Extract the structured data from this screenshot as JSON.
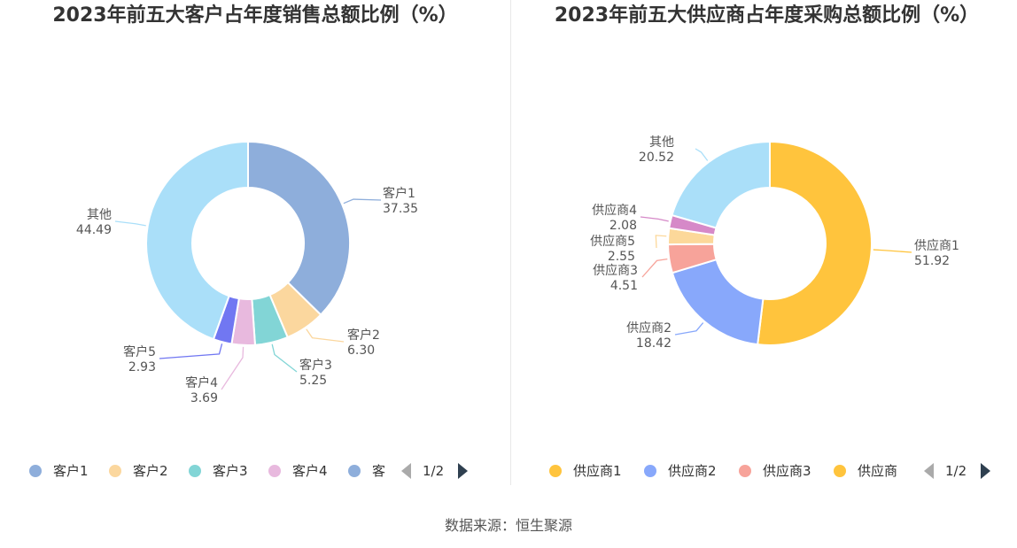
{
  "source": "数据来源：恒生聚源",
  "chart_data": [
    {
      "type": "pie",
      "donut": true,
      "title": "2023年前五大客户占年度销售总额比例（%）",
      "slices": [
        {
          "name": "客户1",
          "value": 37.35,
          "value_label": "37.35",
          "color": "#8eaedb"
        },
        {
          "name": "客户2",
          "value": 6.3,
          "value_label": "6.30",
          "color": "#fbd79e"
        },
        {
          "name": "客户3",
          "value": 5.25,
          "value_label": "5.25",
          "color": "#82d5d6"
        },
        {
          "name": "客户4",
          "value": 3.69,
          "value_label": "3.69",
          "color": "#e8b9de"
        },
        {
          "name": "客户5",
          "value": 2.93,
          "value_label": "2.93",
          "color": "#7177f2"
        },
        {
          "name": "其他",
          "value": 44.49,
          "value_label": "44.49",
          "color": "#aadff9"
        }
      ],
      "legend": {
        "items": [
          "客户1",
          "客户2",
          "客户3",
          "客户4",
          "客"
        ],
        "page": "1/2"
      }
    },
    {
      "type": "pie",
      "donut": true,
      "title": "2023年前五大供应商占年度采购总额比例（%）",
      "slices": [
        {
          "name": "供应商1",
          "value": 51.92,
          "value_label": "51.92",
          "color": "#ffc43d"
        },
        {
          "name": "供应商2",
          "value": 18.42,
          "value_label": "18.42",
          "color": "#88a8fb"
        },
        {
          "name": "供应商3",
          "value": 4.51,
          "value_label": "4.51",
          "color": "#f7a39a"
        },
        {
          "name": "供应商5",
          "value": 2.55,
          "value_label": "2.55",
          "color": "#fcd89a"
        },
        {
          "name": "供应商4",
          "value": 2.08,
          "value_label": "2.08",
          "color": "#d689c8"
        },
        {
          "name": "其他",
          "value": 20.52,
          "value_label": "20.52",
          "color": "#aadff9"
        }
      ],
      "legend": {
        "items": [
          "供应商1",
          "供应商2",
          "供应商3",
          "供应商"
        ],
        "page": "1/2"
      }
    }
  ]
}
